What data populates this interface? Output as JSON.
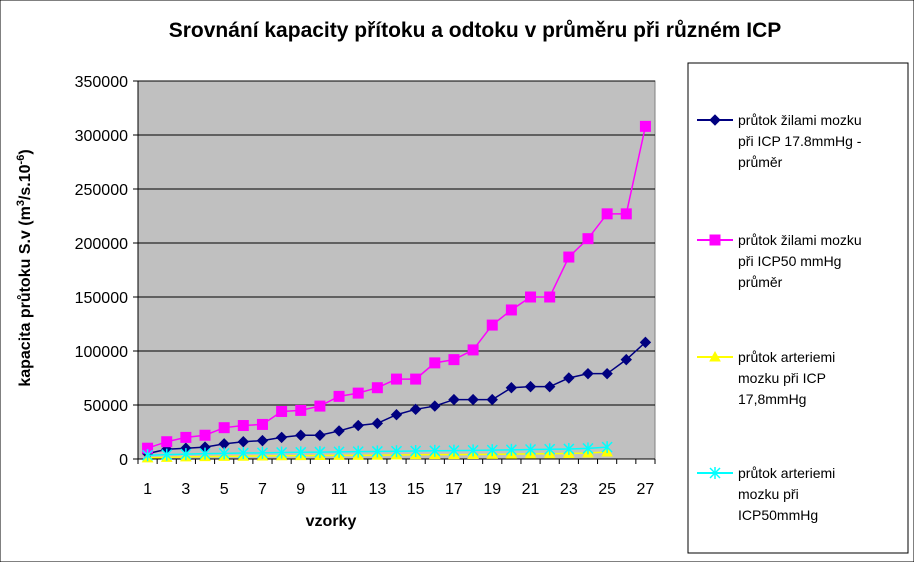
{
  "chart_data": {
    "type": "line",
    "title": "Srovnání kapacity přítoku a odtoku  v průměru při různém ICP",
    "xlabel": "vzorky",
    "ylabel_main": "kapacita průtoku S.v (m",
    "ylabel_sup1": "3",
    "ylabel_mid": "/s.10",
    "ylabel_sup2": "-6",
    "ylabel_end": ")",
    "ylim": [
      0,
      350000
    ],
    "yticks": [
      "0",
      "50000",
      "100000",
      "150000",
      "200000",
      "250000",
      "300000",
      "350000"
    ],
    "xticks": [
      "1",
      "3",
      "5",
      "7",
      "9",
      "11",
      "13",
      "15",
      "17",
      "19",
      "21",
      "23",
      "25",
      "27"
    ],
    "grid": "horizontal",
    "plot_background": "#c0c0c0",
    "legend_position": "right",
    "series": [
      {
        "name": "průtok žilami mozku při ICP 17.8mmHg - průměr",
        "legend_lines": [
          "průtok žilami mozku",
          "při ICP 17.8mmHg -",
          "průměr"
        ],
        "color": "#000080",
        "marker": "diamond",
        "x": [
          1,
          2,
          3,
          4,
          5,
          6,
          7,
          8,
          9,
          10,
          11,
          12,
          13,
          14,
          15,
          16,
          17,
          18,
          19,
          20,
          21,
          22,
          23,
          24,
          25,
          26,
          27
        ],
        "values": [
          5000,
          9000,
          10000,
          11000,
          14000,
          16000,
          17000,
          20000,
          22000,
          22000,
          26000,
          31000,
          33000,
          41000,
          46000,
          49000,
          55000,
          55000,
          55000,
          66000,
          67000,
          67000,
          75000,
          79000,
          79000,
          92000,
          108000
        ]
      },
      {
        "name": "průtok žilami mozku při ICP50 mmHg průměr",
        "legend_lines": [
          "průtok žilami mozku",
          "při ICP50 mmHg",
          "průměr"
        ],
        "color": "#ff00ff",
        "marker": "square",
        "x": [
          1,
          2,
          3,
          4,
          5,
          6,
          7,
          8,
          9,
          10,
          11,
          12,
          13,
          14,
          15,
          16,
          17,
          18,
          19,
          20,
          21,
          22,
          23,
          24,
          25,
          26,
          27
        ],
        "values": [
          10000,
          16000,
          20000,
          22000,
          29000,
          31000,
          32000,
          44000,
          45000,
          49000,
          58000,
          61000,
          66000,
          74000,
          74000,
          89000,
          92000,
          101000,
          124000,
          138000,
          150000,
          150000,
          187000,
          204000,
          227000,
          227000,
          308000
        ]
      },
      {
        "name": "průtok arteriemi mozku při ICP 17,8mmHg",
        "legend_lines": [
          "průtok arteriemi",
          "mozku při ICP",
          "17,8mmHg"
        ],
        "color": "#ffff00",
        "marker": "triangle",
        "x": [
          1,
          2,
          3,
          4,
          5,
          6,
          7,
          8,
          9,
          10,
          11,
          12,
          13,
          14,
          15,
          16,
          17,
          18,
          19,
          20,
          21,
          22,
          23,
          24,
          25
        ],
        "values": [
          1000,
          1500,
          2000,
          2200,
          2400,
          2600,
          2800,
          3000,
          3100,
          3200,
          3300,
          3400,
          3500,
          3700,
          3900,
          4000,
          4100,
          4200,
          4300,
          4500,
          4700,
          4900,
          5100,
          5500,
          6500
        ]
      },
      {
        "name": "průtok arteriemi mozku při ICP50mmHg",
        "legend_lines": [
          "průtok arteriemi",
          "mozku při",
          "ICP50mmHg"
        ],
        "color": "#00ffff",
        "marker": "star",
        "x": [
          1,
          2,
          3,
          4,
          5,
          6,
          7,
          8,
          9,
          10,
          11,
          12,
          13,
          14,
          15,
          16,
          17,
          18,
          19,
          20,
          21,
          22,
          23,
          24,
          25
        ],
        "values": [
          3500,
          4000,
          4500,
          5000,
          5200,
          5500,
          5700,
          6000,
          6200,
          6400,
          6600,
          6800,
          7000,
          7200,
          7400,
          7600,
          7800,
          8000,
          8200,
          8500,
          8800,
          9000,
          9300,
          9800,
          11000
        ]
      }
    ]
  }
}
